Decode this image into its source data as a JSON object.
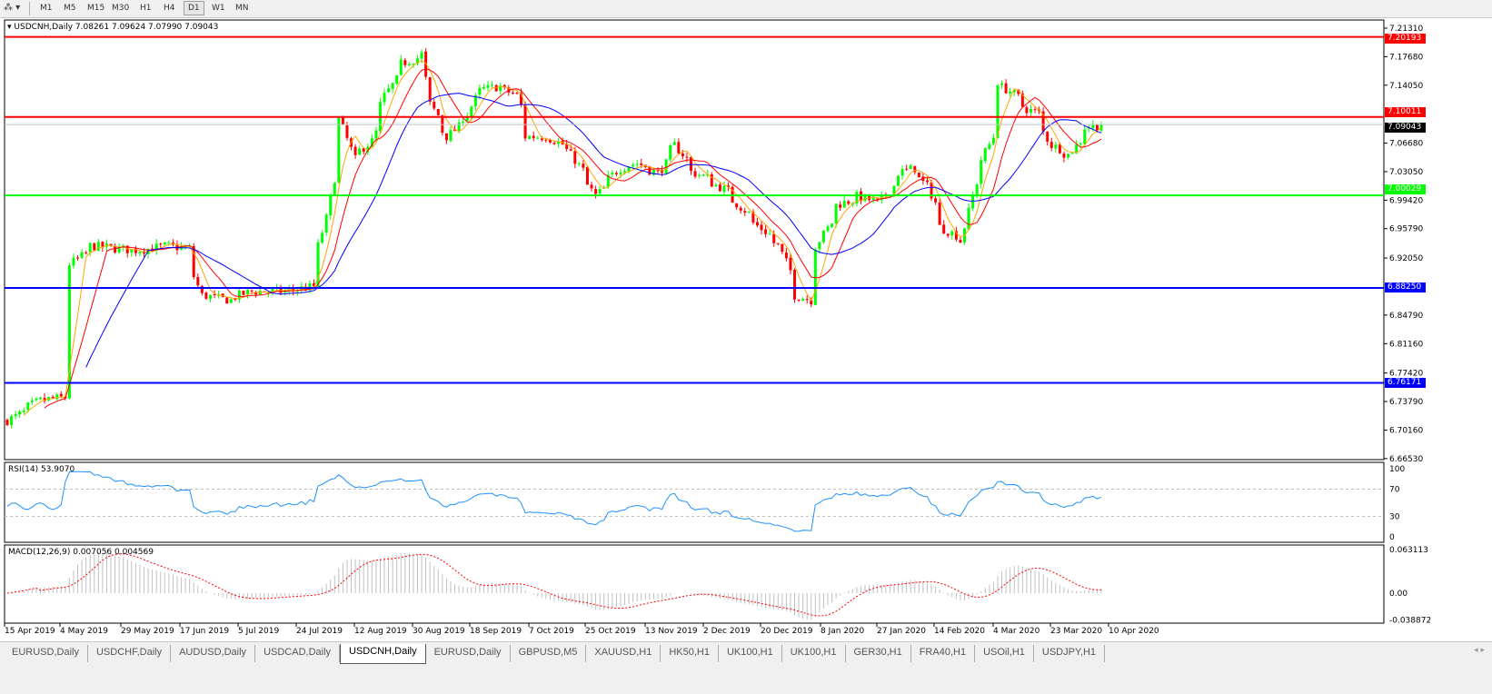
{
  "toolbar": {
    "timeframes": [
      "M1",
      "M5",
      "M15",
      "M30",
      "H1",
      "H4",
      "D1",
      "W1",
      "MN"
    ],
    "active_timeframe": "D1"
  },
  "chart": {
    "title": "USDCNH,Daily  7.08261 7.09624 7.07990 7.09043",
    "price_axis_ticks": [
      "7.21310",
      "7.17680",
      "7.14050",
      "7.06680",
      "7.03050",
      "6.99420",
      "6.95790",
      "6.92050",
      "6.84790",
      "6.81160",
      "6.77420",
      "6.73790",
      "6.70160",
      "6.66530"
    ],
    "horizontal_lines": [
      {
        "price": "7.20193",
        "color": "#ff0000"
      },
      {
        "price": "7.10011",
        "color": "#ff0000"
      },
      {
        "price": "7.00029",
        "color": "#00ff00"
      },
      {
        "price": "6.88250",
        "color": "#0000ff"
      },
      {
        "price": "6.76171",
        "color": "#0000ff"
      }
    ],
    "current_price": "7.09043",
    "colors": {
      "bull": "#00ff00",
      "bear": "#ff0000",
      "ma_fast": "#ffa500",
      "ma_mid": "#ff0000",
      "ma_slow": "#0000ff",
      "rsi": "#1e90ff",
      "macd_hist": "#c0c0c0",
      "macd_signal": "#ff0000"
    },
    "close_keypoints": [
      [
        "2019-04-15",
        6.714
      ],
      [
        "2019-04-25",
        6.739
      ],
      [
        "2019-05-03",
        6.743
      ],
      [
        "2019-05-06",
        6.913
      ],
      [
        "2019-05-13",
        6.936
      ],
      [
        "2019-05-27",
        6.93
      ],
      [
        "2019-06-07",
        6.936
      ],
      [
        "2019-06-14",
        6.933
      ],
      [
        "2019-06-19",
        6.873
      ],
      [
        "2019-06-28",
        6.867
      ],
      [
        "2019-07-05",
        6.878
      ],
      [
        "2019-07-17",
        6.878
      ],
      [
        "2019-07-26",
        6.884
      ],
      [
        "2019-07-31",
        6.971
      ],
      [
        "2019-08-05",
        7.098
      ],
      [
        "2019-08-09",
        7.046
      ],
      [
        "2019-08-15",
        7.069
      ],
      [
        "2019-08-20",
        7.127
      ],
      [
        "2019-08-26",
        7.168
      ],
      [
        "2019-09-02",
        7.18
      ],
      [
        "2019-09-04",
        7.116
      ],
      [
        "2019-09-10",
        7.075
      ],
      [
        "2019-09-17",
        7.104
      ],
      [
        "2019-09-20",
        7.133
      ],
      [
        "2019-09-27",
        7.139
      ],
      [
        "2019-10-03",
        7.128
      ],
      [
        "2019-10-07",
        7.075
      ],
      [
        "2019-10-14",
        7.075
      ],
      [
        "2019-10-21",
        7.058
      ],
      [
        "2019-10-30",
        7.0
      ],
      [
        "2019-11-07",
        7.035
      ],
      [
        "2019-11-13",
        7.041
      ],
      [
        "2019-11-20",
        7.029
      ],
      [
        "2019-11-26",
        7.064
      ],
      [
        "2019-12-02",
        7.03
      ],
      [
        "2019-12-06",
        7.023
      ],
      [
        "2019-12-13",
        7.006
      ],
      [
        "2019-12-23",
        6.965
      ],
      [
        "2019-12-31",
        6.936
      ],
      [
        "2020-01-06",
        6.873
      ],
      [
        "2020-01-10",
        6.867
      ],
      [
        "2020-01-13",
        6.936
      ],
      [
        "2020-01-20",
        6.988
      ],
      [
        "2020-01-27",
        6.999
      ],
      [
        "2020-02-03",
        6.99
      ],
      [
        "2020-02-10",
        7.029
      ],
      [
        "2020-02-14",
        7.035
      ],
      [
        "2020-02-19",
        7.012
      ],
      [
        "2020-02-24",
        6.96
      ],
      [
        "2020-03-02",
        6.942
      ],
      [
        "2020-03-06",
        7.017
      ],
      [
        "2020-03-12",
        7.075
      ],
      [
        "2020-03-13",
        7.145
      ],
      [
        "2020-03-18",
        7.133
      ],
      [
        "2020-03-24",
        7.11
      ],
      [
        "2020-03-27",
        7.105
      ],
      [
        "2020-04-01",
        7.064
      ],
      [
        "2020-04-07",
        7.052
      ],
      [
        "2020-04-13",
        7.087
      ],
      [
        "2020-04-17",
        7.09
      ]
    ],
    "date_axis_labels": [
      "15 Apr 2019",
      "4 May 2019",
      "29 May 2019",
      "17 Jun 2019",
      "5 Jul 2019",
      "24 Jul 2019",
      "12 Aug 2019",
      "30 Aug 2019",
      "18 Sep 2019",
      "7 Oct 2019",
      "25 Oct 2019",
      "13 Nov 2019",
      "2 Dec 2019",
      "20 Dec 2019",
      "8 Jan 2020",
      "27 Jan 2020",
      "14 Feb 2020",
      "4 Mar 2020",
      "23 Mar 2020",
      "10 Apr 2020"
    ]
  },
  "rsi": {
    "title": "RSI(14) 53.9070",
    "axis_ticks": [
      "100",
      "70",
      "30",
      "0"
    ]
  },
  "macd": {
    "title": "MACD(12,26,9) 0.007056 0.004569",
    "axis_ticks": [
      "0.063113",
      "0.00",
      "-0.038872"
    ]
  },
  "tabs": [
    {
      "label": "EURUSD,Daily",
      "active": false
    },
    {
      "label": "USDCHF,Daily",
      "active": false
    },
    {
      "label": "AUDUSD,Daily",
      "active": false
    },
    {
      "label": "USDCAD,Daily",
      "active": false
    },
    {
      "label": "USDCNH,Daily",
      "active": true
    },
    {
      "label": "EURUSD,Daily",
      "active": false
    },
    {
      "label": "GBPUSD,M5",
      "active": false
    },
    {
      "label": "XAUUSD,H1",
      "active": false
    },
    {
      "label": "HK50,H1",
      "active": false
    },
    {
      "label": "UK100,H1",
      "active": false
    },
    {
      "label": "UK100,H1",
      "active": false
    },
    {
      "label": "GER30,H1",
      "active": false
    },
    {
      "label": "FRA40,H1",
      "active": false
    },
    {
      "label": "USOil,H1",
      "active": false
    },
    {
      "label": "USDJPY,H1",
      "active": false
    }
  ],
  "tab_scroll": "◂ ▸"
}
